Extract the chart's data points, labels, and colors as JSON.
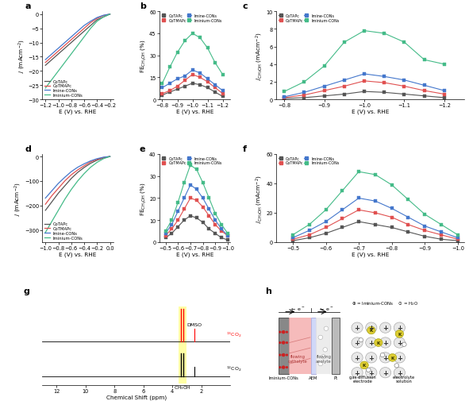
{
  "colors": {
    "CoTAPc": "#555555",
    "CoTMAPc": "#e05050",
    "Imine-CONs": "#4477cc",
    "Iminium-CONs": "#44bb88"
  },
  "panel_a": {
    "xlim": [
      -1.25,
      -0.15
    ],
    "ylim": [
      -30,
      1
    ],
    "xticks": [
      -1.2,
      -1.0,
      -0.8,
      -0.6,
      -0.4,
      -0.2
    ],
    "yticks": [
      0,
      -5,
      -10,
      -15,
      -20,
      -25,
      -30
    ],
    "CoTAPc_x": [
      -1.2,
      -1.1,
      -1.0,
      -0.9,
      -0.8,
      -0.7,
      -0.6,
      -0.5,
      -0.4,
      -0.3,
      -0.2
    ],
    "CoTAPc_y": [
      -18,
      -16,
      -14,
      -12,
      -10,
      -8,
      -6,
      -4,
      -2,
      -1,
      0
    ],
    "CoTMAPc_x": [
      -1.2,
      -1.1,
      -1.0,
      -0.9,
      -0.8,
      -0.7,
      -0.6,
      -0.5,
      -0.4,
      -0.3,
      -0.2
    ],
    "CoTMAPc_y": [
      -17,
      -15,
      -13,
      -11,
      -9,
      -7,
      -5,
      -3,
      -1.5,
      -0.5,
      0
    ],
    "Imine_x": [
      -1.2,
      -1.1,
      -1.0,
      -0.9,
      -0.8,
      -0.7,
      -0.6,
      -0.5,
      -0.4,
      -0.3,
      -0.2
    ],
    "Imine_y": [
      -16,
      -14,
      -12,
      -10,
      -8,
      -6,
      -4,
      -2.5,
      -1.2,
      -0.4,
      0
    ],
    "Iminium_x": [
      -1.2,
      -1.1,
      -1.0,
      -0.9,
      -0.8,
      -0.7,
      -0.6,
      -0.5,
      -0.4,
      -0.3,
      -0.2
    ],
    "Iminium_y": [
      -26,
      -23,
      -20,
      -17,
      -14,
      -11,
      -8,
      -5,
      -2.5,
      -1,
      0
    ]
  },
  "panel_b": {
    "xlim": [
      -1.25,
      -0.78
    ],
    "ylim": [
      0,
      60
    ],
    "xticks": [
      -0.8,
      -0.9,
      -1.0,
      -1.1,
      -1.2
    ],
    "yticks": [
      0,
      15,
      30,
      45,
      60
    ],
    "CoTAPc_x": [
      -0.8,
      -0.85,
      -0.9,
      -0.95,
      -1.0,
      -1.05,
      -1.1,
      -1.15,
      -1.2
    ],
    "CoTAPc_y": [
      3,
      5,
      7,
      9,
      11,
      10,
      8,
      5,
      2
    ],
    "CoTMAPc_x": [
      -0.8,
      -0.85,
      -0.9,
      -0.95,
      -1.0,
      -1.05,
      -1.1,
      -1.15,
      -1.2
    ],
    "CoTMAPc_y": [
      4,
      6,
      9,
      13,
      17,
      15,
      12,
      8,
      4
    ],
    "Imine_x": [
      -0.8,
      -0.85,
      -0.9,
      -0.95,
      -1.0,
      -1.05,
      -1.1,
      -1.15,
      -1.2
    ],
    "Imine_y": [
      8,
      11,
      14,
      16,
      20,
      18,
      14,
      10,
      6
    ],
    "Iminium_x": [
      -0.8,
      -0.85,
      -0.9,
      -0.95,
      -1.0,
      -1.05,
      -1.1,
      -1.15,
      -1.2
    ],
    "Iminium_y": [
      11,
      22,
      32,
      40,
      45,
      42,
      35,
      25,
      17
    ]
  },
  "panel_c": {
    "xlim": [
      -1.25,
      -0.78
    ],
    "ylim": [
      0,
      10
    ],
    "xticks": [
      -0.8,
      -0.9,
      -1.0,
      -1.1,
      -1.2
    ],
    "yticks": [
      0,
      2,
      4,
      6,
      8,
      10
    ],
    "CoTAPc_x": [
      -0.8,
      -0.85,
      -0.9,
      -0.95,
      -1.0,
      -1.05,
      -1.1,
      -1.15,
      -1.2
    ],
    "CoTAPc_y": [
      0.1,
      0.2,
      0.4,
      0.6,
      0.9,
      0.8,
      0.6,
      0.4,
      0.2
    ],
    "CoTMAPc_x": [
      -0.8,
      -0.85,
      -0.9,
      -0.95,
      -1.0,
      -1.05,
      -1.1,
      -1.15,
      -1.2
    ],
    "CoTMAPc_y": [
      0.2,
      0.5,
      1.0,
      1.5,
      2.1,
      1.9,
      1.5,
      1.0,
      0.6
    ],
    "Imine_x": [
      -0.8,
      -0.85,
      -0.9,
      -0.95,
      -1.0,
      -1.05,
      -1.1,
      -1.15,
      -1.2
    ],
    "Imine_y": [
      0.3,
      0.8,
      1.5,
      2.2,
      2.9,
      2.6,
      2.2,
      1.6,
      1.0
    ],
    "Iminium_x": [
      -0.8,
      -0.85,
      -0.9,
      -0.95,
      -1.0,
      -1.05,
      -1.1,
      -1.15,
      -1.2
    ],
    "Iminium_y": [
      0.9,
      2.0,
      3.8,
      6.5,
      7.8,
      7.5,
      6.5,
      4.5,
      4.0
    ]
  },
  "panel_d": {
    "xlim": [
      -1.05,
      0.05
    ],
    "ylim": [
      -350,
      10
    ],
    "xticks": [
      -1.0,
      -0.8,
      -0.6,
      -0.4,
      -0.2,
      0.0
    ],
    "yticks": [
      0,
      -100,
      -200,
      -300
    ],
    "CoTAPc_x": [
      -1.0,
      -0.9,
      -0.8,
      -0.7,
      -0.6,
      -0.5,
      -0.4,
      -0.3,
      -0.2,
      -0.1,
      0.0
    ],
    "CoTAPc_y": [
      -220,
      -185,
      -150,
      -120,
      -90,
      -65,
      -45,
      -28,
      -15,
      -6,
      0
    ],
    "CoTMAPc_x": [
      -1.0,
      -0.9,
      -0.8,
      -0.7,
      -0.6,
      -0.5,
      -0.4,
      -0.3,
      -0.2,
      -0.1,
      0.0
    ],
    "CoTMAPc_y": [
      -195,
      -160,
      -130,
      -100,
      -75,
      -55,
      -38,
      -22,
      -12,
      -4,
      0
    ],
    "Imine_x": [
      -1.0,
      -0.9,
      -0.8,
      -0.7,
      -0.6,
      -0.5,
      -0.4,
      -0.3,
      -0.2,
      -0.1,
      0.0
    ],
    "Imine_y": [
      -170,
      -140,
      -110,
      -85,
      -62,
      -44,
      -30,
      -18,
      -9,
      -3,
      0
    ],
    "Iminium_x": [
      -1.0,
      -0.9,
      -0.8,
      -0.7,
      -0.6,
      -0.5,
      -0.4,
      -0.3,
      -0.2,
      -0.1,
      0.0
    ],
    "Iminium_y": [
      -310,
      -265,
      -220,
      -175,
      -135,
      -100,
      -70,
      -44,
      -24,
      -9,
      0
    ]
  },
  "panel_e": {
    "xlim": [
      -1.02,
      -0.45
    ],
    "ylim": [
      0,
      40
    ],
    "xticks": [
      -0.5,
      -0.6,
      -0.7,
      -0.8,
      -0.9,
      -1.0
    ],
    "yticks": [
      0,
      10,
      20,
      30,
      40
    ],
    "CoTAPc_x": [
      -0.5,
      -0.55,
      -0.6,
      -0.65,
      -0.7,
      -0.75,
      -0.8,
      -0.85,
      -0.9,
      -0.95,
      -1.0
    ],
    "CoTAPc_y": [
      2,
      4,
      7,
      10,
      12,
      11,
      9,
      6,
      4,
      2,
      1
    ],
    "CoTMAPc_x": [
      -0.5,
      -0.55,
      -0.6,
      -0.65,
      -0.7,
      -0.75,
      -0.8,
      -0.85,
      -0.9,
      -0.95,
      -1.0
    ],
    "CoTMAPc_y": [
      3,
      6,
      10,
      15,
      20,
      19,
      16,
      12,
      8,
      5,
      3
    ],
    "Imine_x": [
      -0.5,
      -0.55,
      -0.6,
      -0.65,
      -0.7,
      -0.75,
      -0.8,
      -0.85,
      -0.9,
      -0.95,
      -1.0
    ],
    "Imine_y": [
      4,
      8,
      14,
      20,
      26,
      24,
      20,
      15,
      10,
      6,
      3
    ],
    "Iminium_x": [
      -0.5,
      -0.55,
      -0.6,
      -0.65,
      -0.7,
      -0.75,
      -0.8,
      -0.85,
      -0.9,
      -0.95,
      -1.0
    ],
    "Iminium_y": [
      5,
      10,
      18,
      27,
      35,
      33,
      27,
      20,
      13,
      8,
      4
    ]
  },
  "panel_f": {
    "xlim": [
      -1.02,
      -0.45
    ],
    "ylim": [
      0,
      60
    ],
    "xticks": [
      -0.5,
      -0.6,
      -0.7,
      -0.8,
      -0.9,
      -1.0
    ],
    "yticks": [
      0,
      20,
      40,
      60
    ],
    "CoTAPc_x": [
      -0.5,
      -0.55,
      -0.6,
      -0.65,
      -0.7,
      -0.75,
      -0.8,
      -0.85,
      -0.9,
      -0.95,
      -1.0
    ],
    "CoTAPc_y": [
      1,
      3,
      6,
      10,
      14,
      12,
      10,
      7,
      4,
      2,
      1
    ],
    "CoTMAPc_x": [
      -0.5,
      -0.55,
      -0.6,
      -0.65,
      -0.7,
      -0.75,
      -0.8,
      -0.85,
      -0.9,
      -0.95,
      -1.0
    ],
    "CoTMAPc_y": [
      2,
      5,
      10,
      16,
      22,
      20,
      17,
      12,
      8,
      5,
      2
    ],
    "Imine_x": [
      -0.5,
      -0.55,
      -0.6,
      -0.65,
      -0.7,
      -0.75,
      -0.8,
      -0.85,
      -0.9,
      -0.95,
      -1.0
    ],
    "Imine_y": [
      3,
      8,
      14,
      22,
      30,
      28,
      23,
      17,
      11,
      7,
      3
    ],
    "Iminium_x": [
      -0.5,
      -0.55,
      -0.6,
      -0.65,
      -0.7,
      -0.75,
      -0.8,
      -0.85,
      -0.9,
      -0.95,
      -1.0
    ],
    "Iminium_y": [
      5,
      12,
      22,
      35,
      48,
      46,
      39,
      29,
      19,
      12,
      5
    ]
  }
}
